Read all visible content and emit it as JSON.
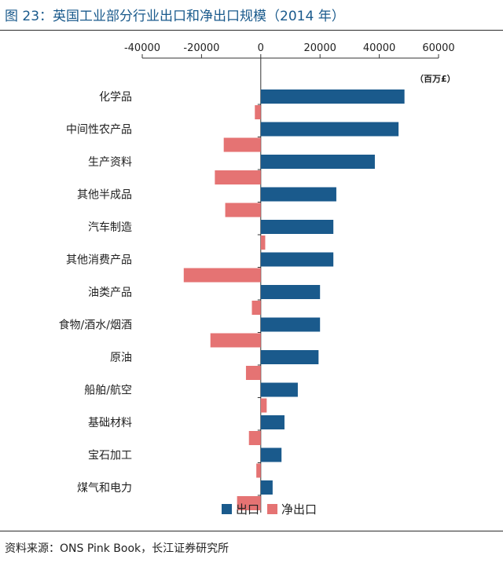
{
  "title": "图 23：英国工业部分行业出口和净出口规模（2014 年）",
  "source": "资料来源：ONS Pink Book，长江证券研究所",
  "chart_data": {
    "type": "bar",
    "orientation": "horizontal",
    "unit_label": "（百万£）",
    "categories": [
      "化学品",
      "中间性农产品",
      "生产资料",
      "其他半成品",
      "汽车制造",
      "其他消费产品",
      "油类产品",
      "食物/酒水/烟酒",
      "原油",
      "船舶/航空",
      "基础材料",
      "宝石加工",
      "煤气和电力"
    ],
    "series": [
      {
        "name": "出口",
        "color": "#1a5a8c",
        "values": [
          48500,
          46500,
          38500,
          25500,
          24500,
          24500,
          20000,
          20000,
          19500,
          12500,
          8000,
          7000,
          4000
        ]
      },
      {
        "name": "净出口",
        "color": "#e57373",
        "values": [
          -2000,
          -12500,
          -15500,
          -12000,
          1500,
          -26000,
          -3000,
          -17000,
          -5000,
          2000,
          -4000,
          -1500,
          -8000
        ]
      }
    ],
    "xlim": [
      -40000,
      60000
    ],
    "xticks": [
      -40000,
      -20000,
      0,
      20000,
      40000,
      60000
    ],
    "legend_position": "bottom-center"
  }
}
